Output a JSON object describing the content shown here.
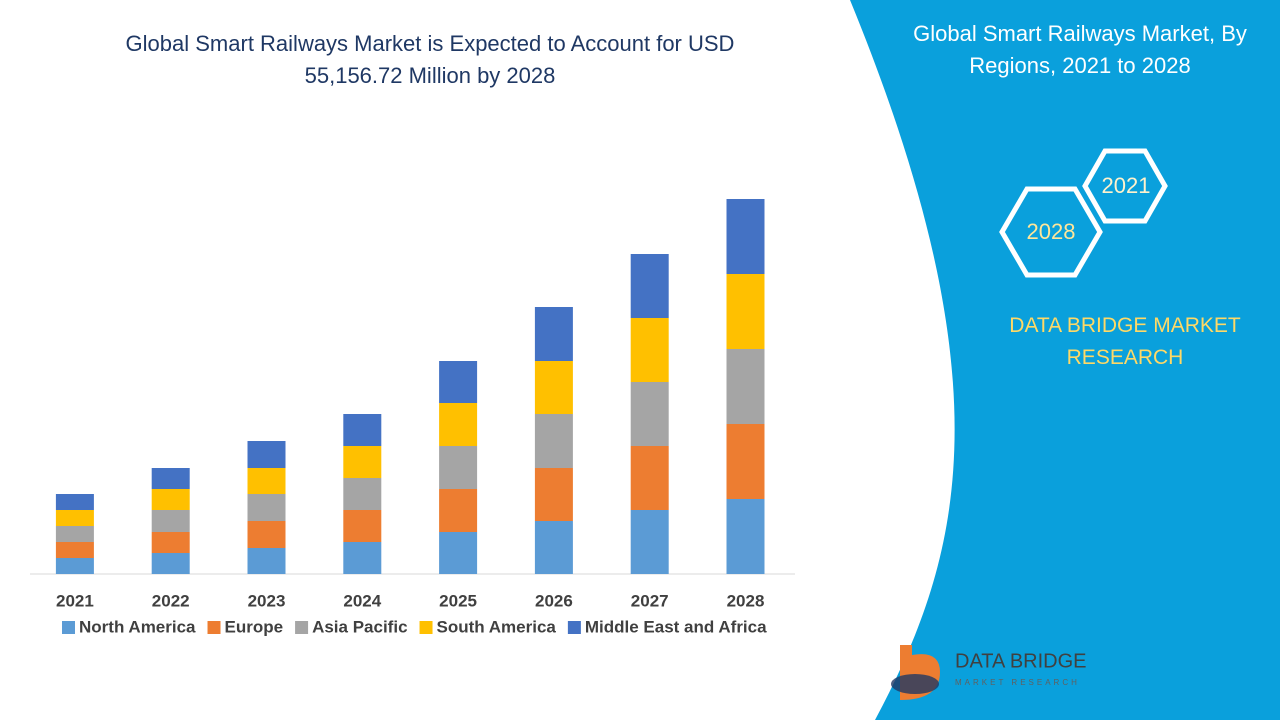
{
  "chart_data": {
    "type": "stacked-bar",
    "title": "Global Smart Railways Market is Expected to Account for USD 55,156.72 Million by 2028",
    "categories": [
      "2021",
      "2022",
      "2023",
      "2024",
      "2025",
      "2026",
      "2027",
      "2028"
    ],
    "series": [
      {
        "name": "North America",
        "color": "#5b9bd5",
        "values": [
          16,
          21,
          26,
          32,
          42,
          53,
          64,
          75
        ]
      },
      {
        "name": "Europe",
        "color": "#ed7d31",
        "values": [
          16,
          21,
          27,
          32,
          43,
          53,
          64,
          75
        ]
      },
      {
        "name": "Asia Pacific",
        "color": "#a5a5a5",
        "values": [
          16,
          22,
          27,
          32,
          43,
          54,
          64,
          75
        ]
      },
      {
        "name": "South America",
        "color": "#ffc000",
        "values": [
          16,
          21,
          26,
          32,
          43,
          53,
          64,
          75
        ]
      },
      {
        "name": "Middle East and Africa",
        "color": "#4472c4",
        "values": [
          16,
          21,
          27,
          32,
          42,
          54,
          64,
          75
        ]
      }
    ]
  },
  "panel": {
    "title": "Global Smart Railways Market, By Regions, 2021 to 2028",
    "hex_start": "2021",
    "hex_end": "2028",
    "brand": "DATA BRIDGE MARKET RESEARCH",
    "logo_name": "DATA BRIDGE",
    "logo_sub": "MARKET RESEARCH"
  }
}
